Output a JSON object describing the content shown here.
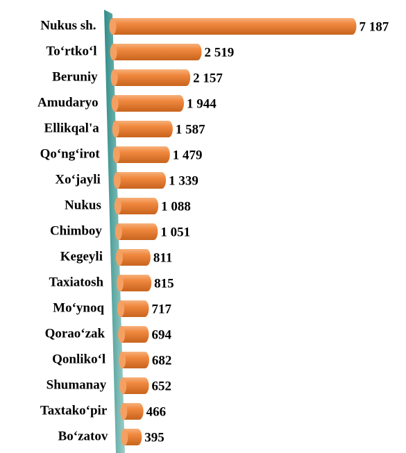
{
  "chart_data": {
    "type": "bar",
    "orientation": "horizontal",
    "color": "#f0883e",
    "categories": [
      "Nukus sh.",
      "To‘rtko‘l",
      "Beruniy",
      "Amudaryo",
      "Ellikqal'a",
      "Qo‘ng‘irot",
      "Xo‘jayli",
      "Nukus",
      "Chimboy",
      "Kegeyli",
      "Taxiatosh",
      "Mo‘ynoq",
      "Qorao‘zak",
      "Qonliko‘l",
      "Shumanay",
      "Taxtako‘pir",
      "Bo‘zatov"
    ],
    "values": [
      7187,
      2519,
      2157,
      1944,
      1587,
      1479,
      1339,
      1088,
      1051,
      811,
      815,
      717,
      694,
      682,
      652,
      466,
      395
    ],
    "value_labels": [
      "7 187",
      "2 519",
      "2 157",
      "1 944",
      "1 587",
      "1 479",
      "1 339",
      "1 088",
      "1 051",
      "811",
      "815",
      "717",
      "694",
      "682",
      "652",
      "466",
      "395"
    ]
  }
}
